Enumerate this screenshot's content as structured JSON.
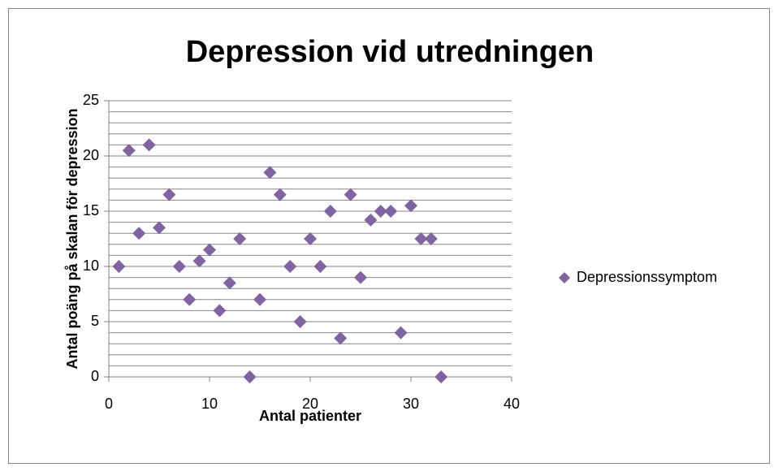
{
  "chart_data": {
    "type": "scatter",
    "title": "Depression vid utredningen",
    "x_label": "Antal patienter",
    "y_label": "Antal poäng på skalan för depression",
    "series": [
      {
        "name": "Depressionssymptom",
        "color": "#8064a2",
        "x": [
          1,
          2,
          3,
          4,
          5,
          6,
          7,
          8,
          9,
          10,
          11,
          12,
          13,
          14,
          15,
          16,
          17,
          18,
          19,
          20,
          21,
          22,
          23,
          24,
          25,
          26,
          27,
          28,
          29,
          30,
          31,
          32,
          33
        ],
        "values": [
          10,
          20.5,
          13,
          21,
          13.5,
          16.5,
          10,
          7,
          10.5,
          11.5,
          6,
          8.5,
          12.5,
          0,
          7,
          18.5,
          16.5,
          10,
          5,
          12.5,
          10,
          15,
          3.5,
          16.5,
          9,
          14.2,
          15,
          15,
          4,
          15.5,
          12.5,
          12.5,
          0
        ]
      }
    ],
    "xlim": [
      0,
      40
    ],
    "xticks": [
      0,
      10,
      20,
      30,
      40
    ],
    "ylim": [
      0,
      25
    ],
    "yticks": [
      0,
      5,
      10,
      15,
      20,
      25
    ],
    "ygrid": [
      0,
      1,
      2,
      3,
      4,
      5,
      6,
      7,
      8,
      9,
      10,
      11,
      12,
      13,
      14,
      15,
      16,
      17,
      18,
      19,
      20,
      21,
      22,
      23,
      24,
      25
    ],
    "legend": "right"
  }
}
